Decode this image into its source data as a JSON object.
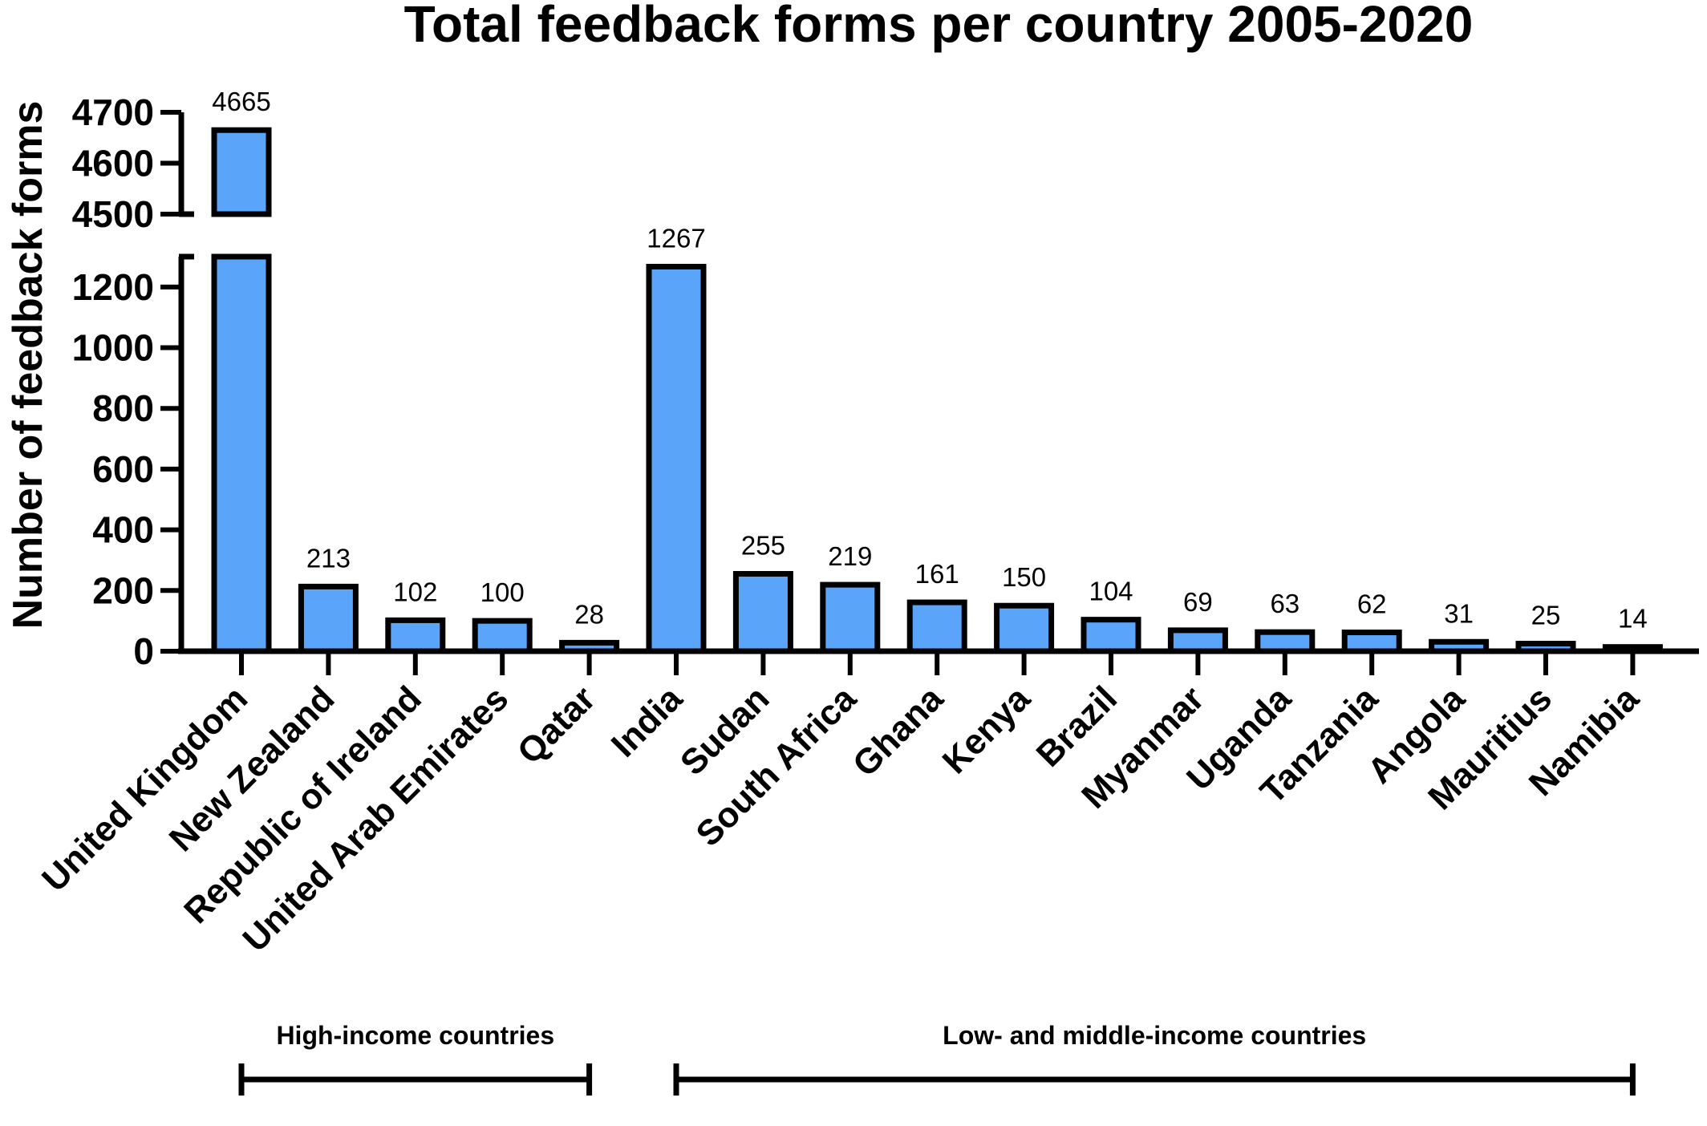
{
  "chart_data": {
    "type": "bar",
    "title": "Total feedback forms per country 2005-2020",
    "xlabel": "",
    "ylabel": "Number of feedback forms",
    "categories": [
      "United Kingdom",
      "New Zealand",
      "Republic of Ireland",
      "United Arab Emirates",
      "Qatar",
      "India",
      "Sudan",
      "South Africa",
      "Ghana",
      "Kenya",
      "Brazil",
      "Myanmar",
      "Uganda",
      "Tanzania",
      "Angola",
      "Mauritius",
      "Namibia"
    ],
    "values": [
      4665,
      213,
      102,
      100,
      28,
      1267,
      255,
      219,
      161,
      150,
      104,
      69,
      63,
      62,
      31,
      25,
      14
    ],
    "data_labels": [
      "4665",
      "213",
      "102",
      "100",
      "28",
      "1267",
      "255",
      "219",
      "161",
      "150",
      "104",
      "69",
      "63",
      "62",
      "31",
      "25",
      "14"
    ],
    "y_axis_break": true,
    "ylim_lower": [
      0,
      1300
    ],
    "ylim_upper": [
      4500,
      4700
    ],
    "yticks_lower": [
      "0",
      "200",
      "400",
      "600",
      "800",
      "1000",
      "1200"
    ],
    "yticks_upper": [
      "4500",
      "4600",
      "4700"
    ],
    "grid": false,
    "bar_color": "#5aa4fa",
    "bar_edge_color": "#000000",
    "groups": [
      {
        "label": "High-income countries",
        "first_category": 0,
        "last_category": 4
      },
      {
        "label": "Low- and middle-income countries",
        "first_category": 5,
        "last_category": 16
      }
    ]
  }
}
